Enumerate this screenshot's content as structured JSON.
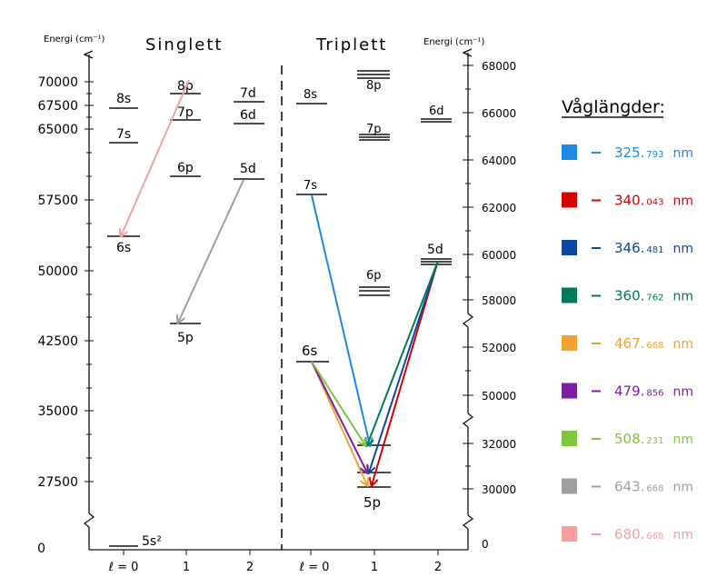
{
  "headers": {
    "left_axis_label": "Energi (cm⁻¹)",
    "right_axis_label": "Energi (cm⁻¹)",
    "singlet": "Singlett",
    "triplet": "Triplett"
  },
  "left_axis": {
    "ticks": [
      "70000",
      "67500",
      "65000",
      "57500",
      "50000",
      "42500",
      "35000",
      "27500",
      "0"
    ]
  },
  "right_axis": {
    "ticks": [
      "68000",
      "66000",
      "64000",
      "62000",
      "60000",
      "58000",
      "52000",
      "50000",
      "32000",
      "30000",
      "0"
    ]
  },
  "x_labels": {
    "singlet": [
      "ℓ = 0",
      "1",
      "2"
    ],
    "triplet": [
      "ℓ = 0",
      "1",
      "2"
    ]
  },
  "singlet_levels": [
    {
      "label": "5s²"
    },
    {
      "label": "6s"
    },
    {
      "label": "7s"
    },
    {
      "label": "8s"
    },
    {
      "label": "5p"
    },
    {
      "label": "6p"
    },
    {
      "label": "7p"
    },
    {
      "label": "8p"
    },
    {
      "label": "5d"
    },
    {
      "label": "6d"
    },
    {
      "label": "7d"
    }
  ],
  "triplet_levels": [
    {
      "label": "6s"
    },
    {
      "label": "7s"
    },
    {
      "label": "8s"
    },
    {
      "label": "5p"
    },
    {
      "label": "6p"
    },
    {
      "label": "7p"
    },
    {
      "label": "8p"
    },
    {
      "label": "5d"
    },
    {
      "label": "6d"
    }
  ],
  "legend": {
    "title": "Våglängder:",
    "items": [
      {
        "main": "325.",
        "small": "793",
        "unit": "nm",
        "color": "#1e88e5"
      },
      {
        "main": "340.",
        "small": "043",
        "unit": "nm",
        "color": "#d50000"
      },
      {
        "main": "346.",
        "small": "481",
        "unit": "nm",
        "color": "#0d47a1"
      },
      {
        "main": "360.",
        "small": "762",
        "unit": "nm",
        "color": "#00795a"
      },
      {
        "main": "467.",
        "small": "668",
        "unit": "nm",
        "color": "#f5a12d"
      },
      {
        "main": "479.",
        "small": "856",
        "unit": "nm",
        "color": "#7b1fa2"
      },
      {
        "main": "508.",
        "small": "231",
        "unit": "nm",
        "color": "#7dc63c"
      },
      {
        "main": "643.",
        "small": "668",
        "unit": "nm",
        "color": "#9e9e9e"
      },
      {
        "main": "680.",
        "small": "668",
        "unit": "nm",
        "color": "#f4a0a0"
      }
    ]
  }
}
